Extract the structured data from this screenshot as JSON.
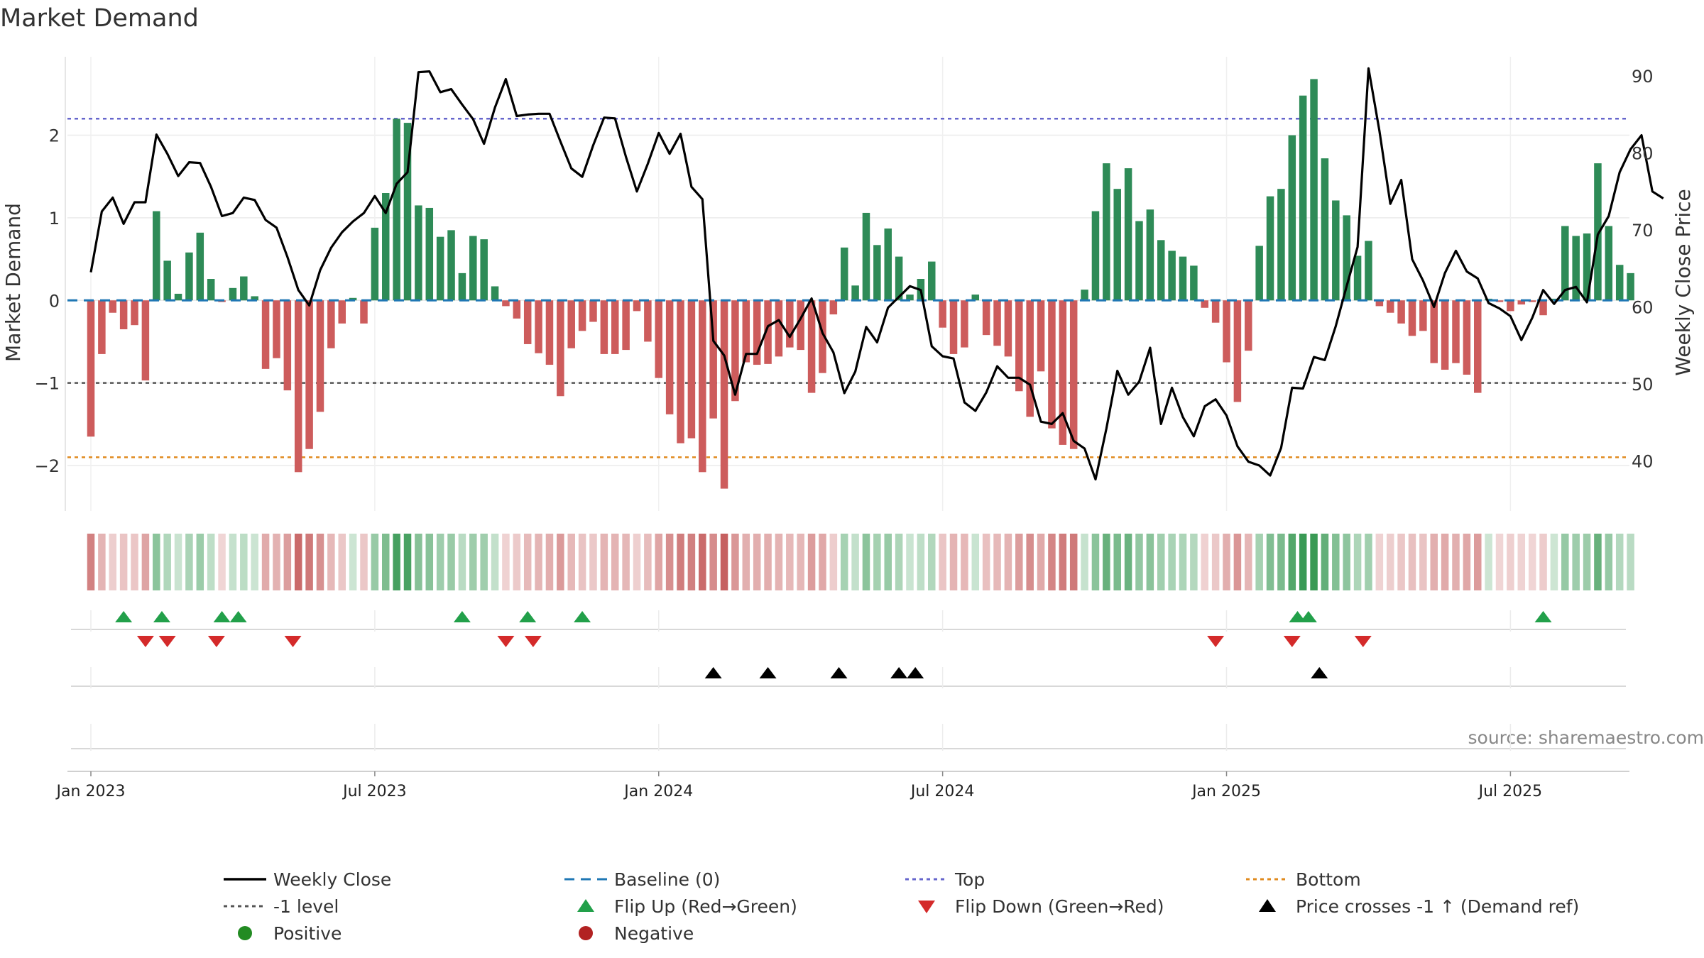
{
  "chart_data": {
    "type": "bar",
    "title": "Market Demand",
    "ylabel": "Market Demand",
    "ylabel_right": "Weekly Close Price",
    "ylim": [
      -2.55,
      2.95
    ],
    "ylim_right": [
      33.5,
      92.5
    ],
    "y_ticks": [
      -2,
      -1,
      0,
      1,
      2
    ],
    "y_tick_labels": [
      "−2",
      "−1",
      "0",
      "1",
      "2"
    ],
    "y_ticks_right": [
      40,
      50,
      60,
      70,
      80,
      90
    ],
    "x_ticks": [
      {
        "week": 1,
        "label": "Jan 2023"
      },
      {
        "week": 27,
        "label": "Jul 2023"
      },
      {
        "week": 53,
        "label": "Jan 2024"
      },
      {
        "week": 79,
        "label": "Jul 2024"
      },
      {
        "week": 105,
        "label": "Jan 2025"
      },
      {
        "week": 131,
        "label": "Jul 2025"
      }
    ],
    "reference_lines": {
      "top": 2.2,
      "bottom": -1.9,
      "minus_one": -1.0,
      "baseline": 0
    },
    "series": [
      {
        "name": "Market Demand",
        "values": [
          -1.65,
          -0.65,
          -0.15,
          -0.35,
          -0.3,
          -0.97,
          1.08,
          0.48,
          0.08,
          0.58,
          0.82,
          0.26,
          -0.02,
          0.15,
          0.29,
          0.05,
          -0.83,
          -0.7,
          -1.09,
          -2.08,
          -1.8,
          -1.35,
          -0.58,
          -0.28,
          0.03,
          -0.28,
          0.88,
          1.3,
          2.2,
          2.15,
          1.15,
          1.12,
          0.77,
          0.85,
          0.33,
          0.78,
          0.74,
          0.17,
          -0.07,
          -0.22,
          -0.53,
          -0.64,
          -0.78,
          -1.16,
          -0.58,
          -0.37,
          -0.26,
          -0.65,
          -0.65,
          -0.6,
          -0.13,
          -0.5,
          -0.94,
          -1.38,
          -1.73,
          -1.67,
          -2.08,
          -1.43,
          -2.28,
          -1.22,
          -0.75,
          -0.78,
          -0.77,
          -0.68,
          -0.57,
          -0.6,
          -1.12,
          -0.88,
          -0.17,
          0.64,
          0.18,
          1.06,
          0.67,
          0.87,
          0.53,
          0.07,
          0.26,
          0.47,
          -0.33,
          -0.65,
          -0.57,
          0.07,
          -0.42,
          -0.55,
          -0.68,
          -1.1,
          -1.41,
          -0.86,
          -1.55,
          -1.75,
          -1.8,
          0.13,
          1.08,
          1.66,
          1.35,
          1.6,
          0.96,
          1.1,
          0.73,
          0.6,
          0.53,
          0.42,
          -0.09,
          -0.27,
          -0.75,
          -1.23,
          -0.61,
          0.66,
          1.26,
          1.35,
          2.0,
          2.48,
          2.68,
          1.72,
          1.21,
          1.03,
          0.54,
          0.72,
          -0.07,
          -0.15,
          -0.28,
          -0.43,
          -0.37,
          -0.76,
          -0.84,
          -0.76,
          -0.9,
          -1.12,
          0.02,
          -0.02,
          -0.13,
          -0.05,
          -0.02,
          -0.18,
          0.02,
          0.9,
          0.78,
          0.81,
          1.66,
          0.9,
          0.43,
          0.33
        ]
      },
      {
        "name": "Weekly Close",
        "values": [
          64.5,
          72.4,
          74.2,
          70.8,
          73.6,
          73.6,
          82.4,
          79.9,
          77.0,
          78.8,
          78.7,
          75.6,
          71.8,
          72.2,
          74.2,
          73.9,
          71.3,
          70.3,
          66.5,
          62.2,
          60.2,
          64.8,
          67.7,
          69.7,
          71.1,
          72.2,
          74.4,
          72.2,
          76.0,
          77.5,
          90.5,
          90.6,
          87.9,
          88.3,
          86.3,
          84.4,
          81.2,
          85.9,
          89.6,
          84.8,
          85.0,
          85.1,
          85.1,
          81.5,
          78.0,
          76.9,
          81.0,
          84.6,
          84.5,
          79.5,
          75.0,
          78.6,
          82.6,
          79.9,
          82.5,
          75.6,
          74.0,
          55.6,
          53.7,
          48.6,
          53.9,
          53.9,
          57.5,
          58.3,
          56.1,
          58.5,
          61.1,
          56.6,
          54.1,
          48.8,
          51.6,
          57.4,
          55.4,
          59.9,
          61.3,
          62.7,
          62.2,
          54.9,
          53.6,
          53.3,
          47.6,
          46.5,
          48.9,
          52.3,
          50.8,
          50.8,
          49.9,
          45.1,
          44.8,
          46.2,
          42.6,
          41.6,
          37.6,
          44.2,
          51.7,
          48.6,
          50.3,
          54.7,
          44.8,
          49.5,
          45.7,
          43.2,
          47.1,
          48.0,
          45.9,
          41.9,
          39.9,
          39.4,
          38.1,
          41.7,
          49.5,
          49.4,
          53.5,
          53.1,
          57.5,
          62.7,
          67.8,
          91.0,
          82.9,
          73.4,
          76.5,
          66.2,
          63.4,
          60.0,
          64.4,
          67.3,
          64.6,
          63.7,
          60.5,
          59.8,
          58.8,
          55.7,
          58.6,
          62.2,
          60.4,
          62.2,
          62.6,
          60.6,
          69.4,
          71.8,
          77.5,
          80.5,
          82.3,
          75.0,
          74.1
        ]
      }
    ],
    "flip_up_weeks": [
      4,
      7.5,
      13,
      14.5,
      35,
      41,
      46,
      111.5,
      112.5,
      134
    ],
    "flip_down_weeks": [
      6,
      8,
      12.5,
      19.5,
      39,
      41.5,
      104,
      111,
      117.5
    ],
    "price_cross_weeks": [
      58,
      63,
      69.5,
      75,
      76.5,
      113.5
    ],
    "legend": [
      "Weekly Close",
      "Baseline (0)",
      "Top",
      "Bottom",
      "-1 level",
      "Flip Up (Red→Green)",
      "Flip Down (Green→Red)",
      "Price crosses -1 ↑ (Demand ref)",
      "Positive",
      "Negative"
    ]
  },
  "source_note": "source: sharemaestro.com",
  "colors": {
    "positive": "#2e8b57",
    "negative": "#cd5c5c",
    "price": "#000000",
    "baseline": "#1f77b4",
    "top": "#6666cc",
    "bottom": "#e08a1e",
    "minus_one": "#555555",
    "flip_up": "#22a04a",
    "flip_down": "#d42a2a",
    "cross": "#000000",
    "positive_dot": "#228b22",
    "negative_dot": "#b22222"
  }
}
